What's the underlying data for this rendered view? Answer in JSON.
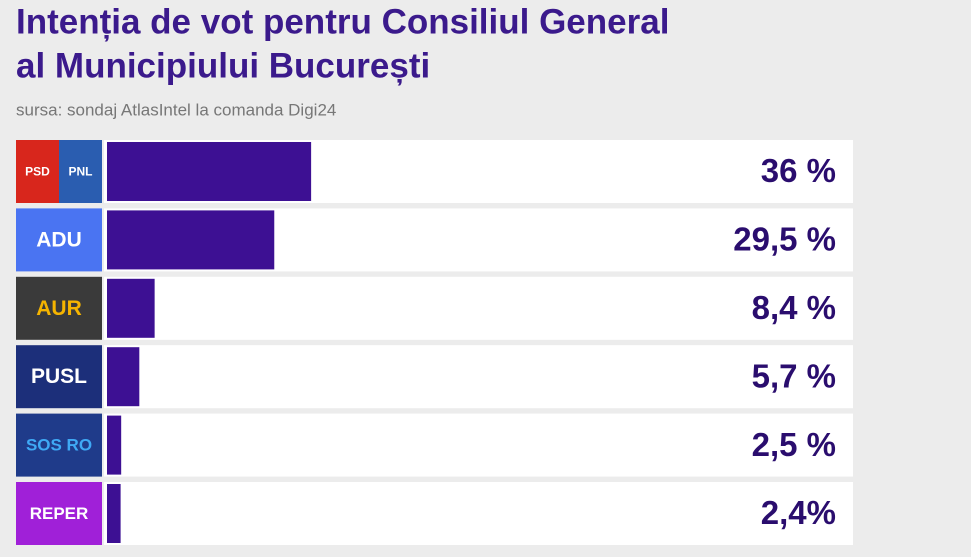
{
  "chart_data": {
    "type": "hbar",
    "title": [
      "Intenția de vot pentru Consiliul General",
      "al Municipiului București"
    ],
    "subtitle": "sursa: sondaj AtlasIntel la comanda Digi24",
    "categories": [
      [
        "PSD",
        "PNL"
      ],
      [
        "ADU"
      ],
      [
        "AUR"
      ],
      [
        "PUSL"
      ],
      [
        "SOS RO"
      ],
      [
        "REPER"
      ]
    ],
    "logo_colors": [
      [
        "#d8261c",
        "#2a5db0"
      ],
      [
        "#4a74f2"
      ],
      [
        "#3a3a3a"
      ],
      [
        "#1c2f7a"
      ],
      [
        "#1f3b8a"
      ],
      [
        "#a020d8"
      ]
    ],
    "logo_text_colors": [
      [
        "#ffffff",
        "#ffffff"
      ],
      [
        "#ffffff"
      ],
      [
        "#f5b400"
      ],
      [
        "#ffffff"
      ],
      [
        "#3fa9f5"
      ],
      [
        "#ffffff"
      ]
    ],
    "values": [
      36,
      29.5,
      8.4,
      5.7,
      2.5,
      2.4
    ],
    "value_labels": [
      "36 %",
      "29,5 %",
      "8,4 %",
      "5,7 %",
      "2,5 %",
      "2,4%"
    ],
    "color": "#3d1093"
  }
}
